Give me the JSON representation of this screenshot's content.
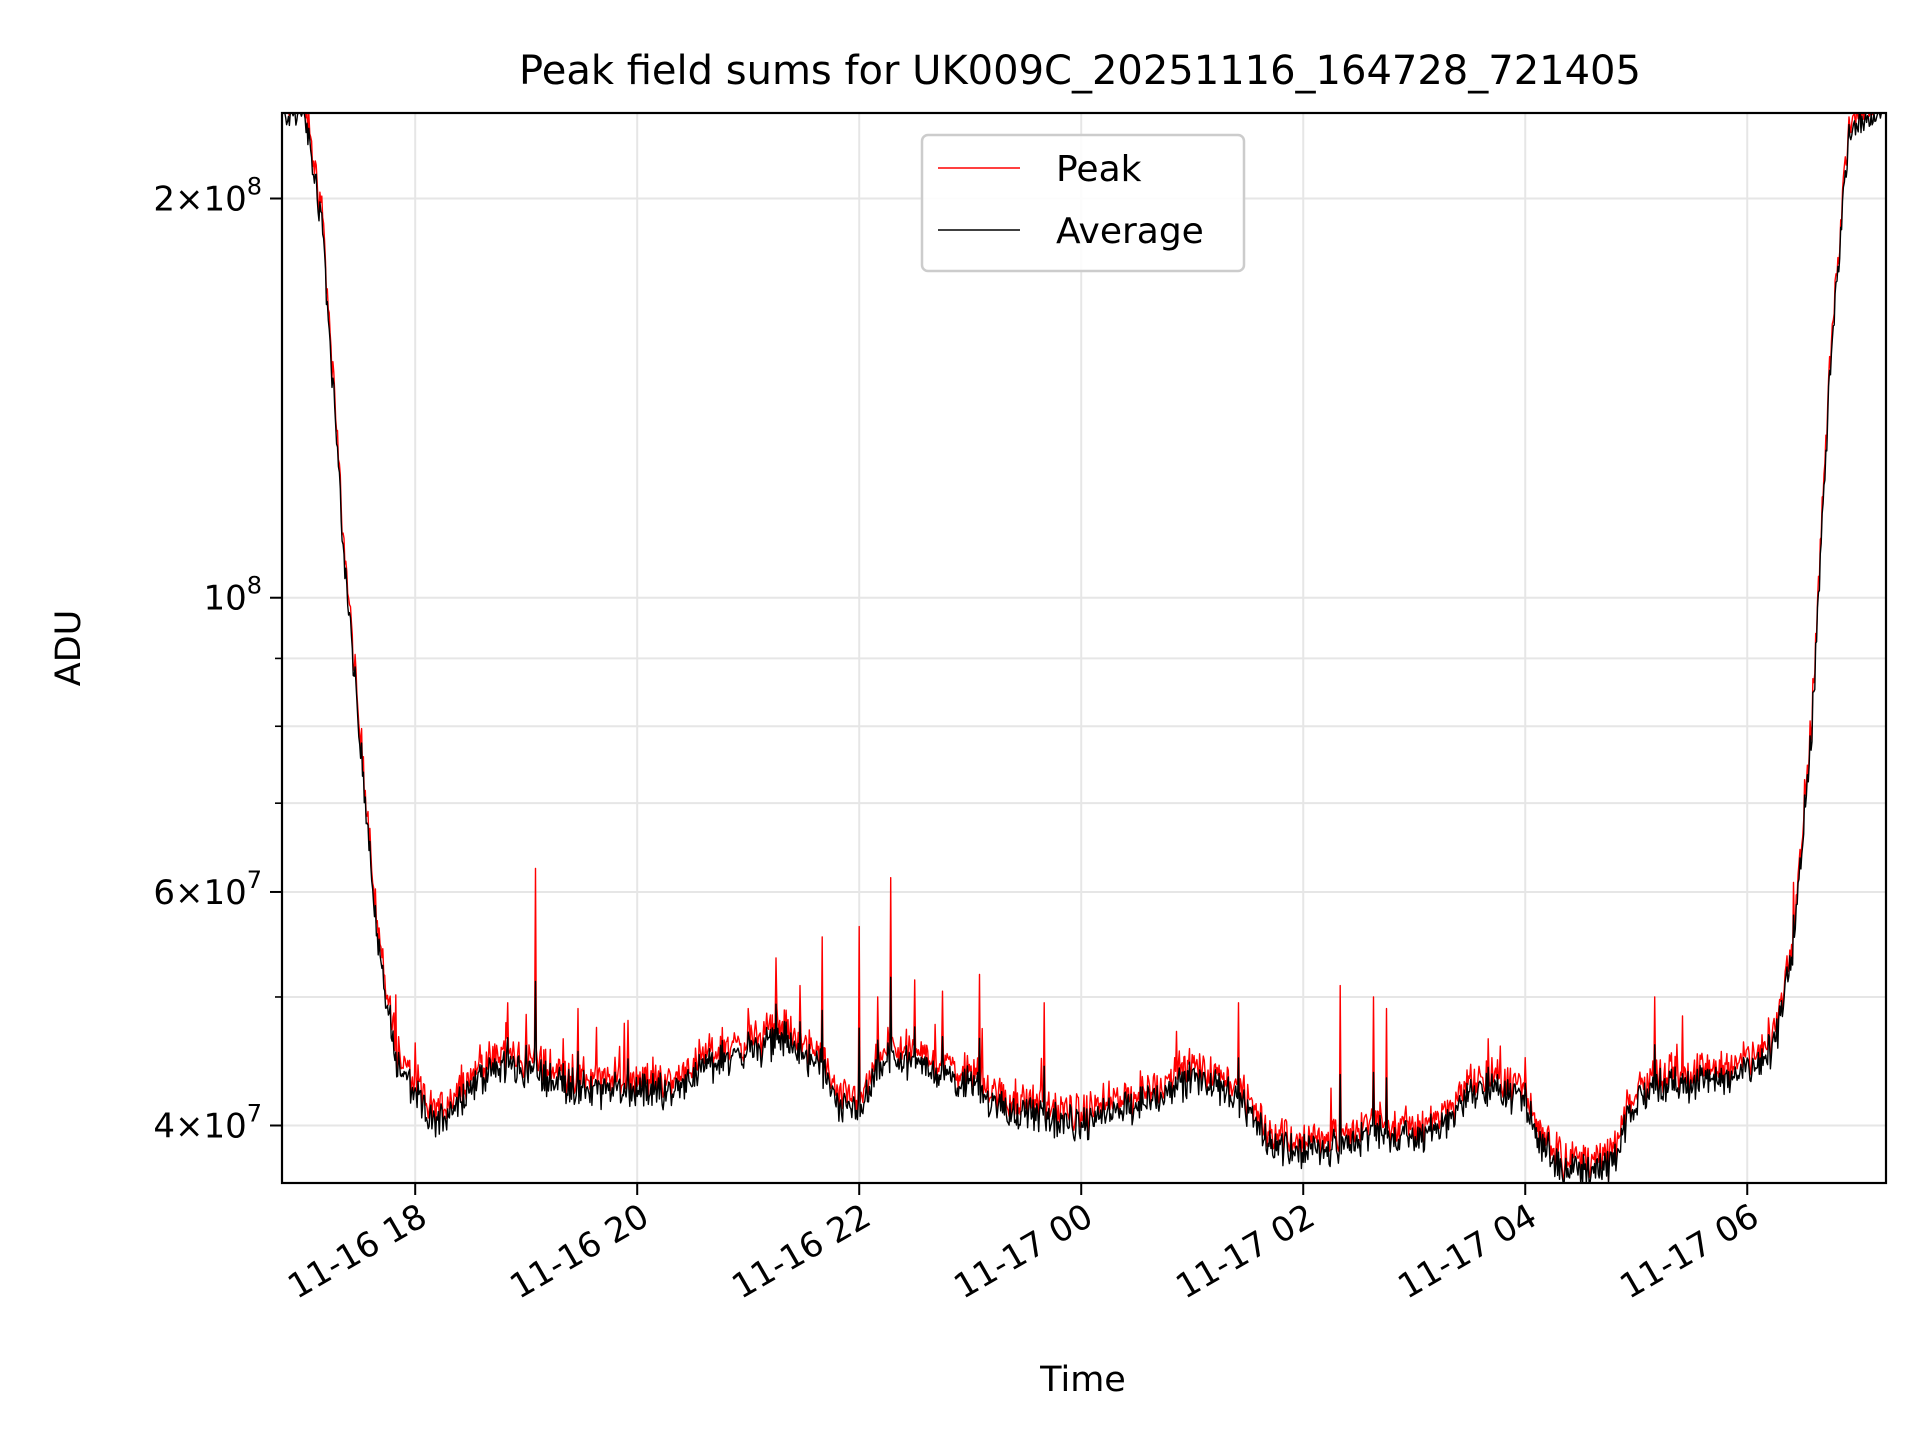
{
  "chart_data": {
    "type": "line",
    "title": "Peak field sums for UK009C_20251116_164728_721405",
    "xlabel": "Time",
    "ylabel": "ADU",
    "yscale": "log",
    "xlim": [
      "2025-11-16 16:48",
      "2025-11-17 07:15"
    ],
    "ylim": [
      36200000,
      232000000
    ],
    "grid": true,
    "legend": {
      "placement": "upper center",
      "entries": [
        "Peak",
        "Average"
      ]
    },
    "x_ticks": [
      "2025-11-16 18:00",
      "2025-11-16 20:00",
      "2025-11-16 22:00",
      "2025-11-17 00:00",
      "2025-11-17 02:00",
      "2025-11-17 04:00",
      "2025-11-17 06:00"
    ],
    "x_tick_labels": [
      "11-16 18",
      "11-16 20",
      "11-16 22",
      "11-17 00",
      "11-17 02",
      "11-17 04",
      "11-17 06"
    ],
    "y_major_ticks": [
      {
        "value": 40000000,
        "mantissa": "4",
        "exponent": "7"
      },
      {
        "value": 60000000,
        "mantissa": "6",
        "exponent": "7"
      },
      {
        "value": 100000000,
        "mantissa": "",
        "exponent": "8"
      },
      {
        "value": 200000000,
        "mantissa": "2",
        "exponent": "8"
      }
    ],
    "y_minor_ticks": [
      50000000,
      70000000,
      80000000,
      90000000
    ],
    "baseline": {
      "x": [
        "2025-11-16 16:48",
        "2025-11-16 17:00",
        "2025-11-16 17:10",
        "2025-11-16 17:20",
        "2025-11-16 17:30",
        "2025-11-16 17:40",
        "2025-11-16 17:50",
        "2025-11-16 18:00",
        "2025-11-16 18:10",
        "2025-11-16 18:25",
        "2025-11-16 18:45",
        "2025-11-16 19:00",
        "2025-11-16 19:20",
        "2025-11-16 19:40",
        "2025-11-16 20:00",
        "2025-11-16 20:20",
        "2025-11-16 20:40",
        "2025-11-16 21:00",
        "2025-11-16 21:20",
        "2025-11-16 21:40",
        "2025-11-16 21:50",
        "2025-11-16 22:00",
        "2025-11-16 22:15",
        "2025-11-16 22:40",
        "2025-11-16 23:00",
        "2025-11-16 23:20",
        "2025-11-16 23:40",
        "2025-11-17 00:00",
        "2025-11-17 00:20",
        "2025-11-17 00:40",
        "2025-11-17 01:00",
        "2025-11-17 01:20",
        "2025-11-17 01:40",
        "2025-11-17 02:00",
        "2025-11-17 02:20",
        "2025-11-17 02:40",
        "2025-11-17 03:00",
        "2025-11-17 03:20",
        "2025-11-17 03:30",
        "2025-11-17 03:50",
        "2025-11-17 04:00",
        "2025-11-17 04:10",
        "2025-11-17 04:20",
        "2025-11-17 04:30",
        "2025-11-17 04:45",
        "2025-11-17 05:00",
        "2025-11-17 05:10",
        "2025-11-17 05:30",
        "2025-11-17 05:50",
        "2025-11-17 06:05",
        "2025-11-17 06:15",
        "2025-11-17 06:25",
        "2025-11-17 06:35",
        "2025-11-17 06:45",
        "2025-11-17 06:55",
        "2025-11-17 07:05",
        "2025-11-17 07:15"
      ],
      "values": [
        232000000,
        232000000,
        190000000,
        115000000,
        78000000,
        55000000,
        44500000,
        42000000,
        40000000,
        42000000,
        44500000,
        44000000,
        43000000,
        42500000,
        42500000,
        42500000,
        44500000,
        45500000,
        46500000,
        44000000,
        41000000,
        41000000,
        45000000,
        44000000,
        43000000,
        41000000,
        40500000,
        40000000,
        41000000,
        42000000,
        43500000,
        42500000,
        39000000,
        38200000,
        38500000,
        39500000,
        39000000,
        40500000,
        42500000,
        42500000,
        41500000,
        38500000,
        37000000,
        37000000,
        37000000,
        41500000,
        43000000,
        43000000,
        43500000,
        44500000,
        46000000,
        55000000,
        80000000,
        150000000,
        225000000,
        232000000,
        232000000
      ]
    },
    "series": [
      {
        "name": "Peak",
        "color": "#ff0000",
        "spikes": [
          {
            "x": "2025-11-16 18:35",
            "value": 46000000
          },
          {
            "x": "2025-11-16 18:50",
            "value": 49500000
          },
          {
            "x": "2025-11-16 19:00",
            "value": 48500000
          },
          {
            "x": "2025-11-16 19:05",
            "value": 62500000
          },
          {
            "x": "2025-11-16 19:20",
            "value": 46500000
          },
          {
            "x": "2025-11-16 19:28",
            "value": 49000000
          },
          {
            "x": "2025-11-16 19:55",
            "value": 48000000
          },
          {
            "x": "2025-11-16 21:00",
            "value": 49000000
          },
          {
            "x": "2025-11-16 21:15",
            "value": 53500000
          },
          {
            "x": "2025-11-16 21:28",
            "value": 51000000
          },
          {
            "x": "2025-11-16 21:40",
            "value": 55500000
          },
          {
            "x": "2025-11-16 22:00",
            "value": 56500000
          },
          {
            "x": "2025-11-16 22:10",
            "value": 50000000
          },
          {
            "x": "2025-11-16 22:17",
            "value": 61500000
          },
          {
            "x": "2025-11-16 22:30",
            "value": 51500000
          },
          {
            "x": "2025-11-16 22:45",
            "value": 50500000
          },
          {
            "x": "2025-11-16 23:05",
            "value": 52000000
          },
          {
            "x": "2025-11-16 23:40",
            "value": 49500000
          },
          {
            "x": "2025-11-17 01:25",
            "value": 49500000
          },
          {
            "x": "2025-11-17 02:20",
            "value": 51000000
          },
          {
            "x": "2025-11-17 02:38",
            "value": 50000000
          },
          {
            "x": "2025-11-17 02:45",
            "value": 49000000
          },
          {
            "x": "2025-11-17 03:40",
            "value": 46500000
          },
          {
            "x": "2025-11-17 04:00",
            "value": 45000000
          },
          {
            "x": "2025-11-17 05:10",
            "value": 50000000
          },
          {
            "x": "2025-11-17 06:25",
            "value": 61000000
          }
        ]
      },
      {
        "name": "Average",
        "color": "#000000"
      }
    ]
  }
}
